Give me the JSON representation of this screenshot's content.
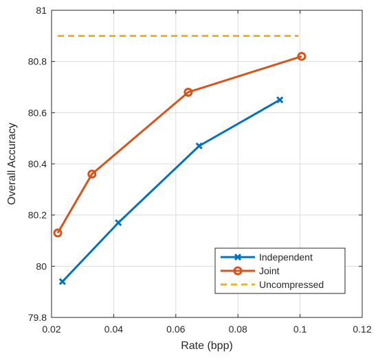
{
  "chart_data": {
    "type": "line",
    "title": "",
    "xlabel": "Rate (bpp)",
    "ylabel": "Overall Accuracy",
    "xlim": [
      0.02,
      0.12
    ],
    "ylim": [
      79.8,
      81
    ],
    "xticks": [
      0.02,
      0.04,
      0.06,
      0.08,
      0.1,
      0.12
    ],
    "xtick_labels": [
      "0.02",
      "0.04",
      "0.06",
      "0.08",
      "0.1",
      "0.12"
    ],
    "yticks": [
      79.8,
      80,
      80.2,
      80.4,
      80.6,
      80.8,
      81
    ],
    "ytick_labels": [
      "79.8",
      "80",
      "80.2",
      "80.4",
      "80.6",
      "80.8",
      "81"
    ],
    "grid": true,
    "legend_position": "bottom-right",
    "series": [
      {
        "name": "Independent",
        "color": "#0072BD",
        "marker": "x",
        "line_style": "solid",
        "x": [
          0.0235,
          0.0415,
          0.0675,
          0.0935
        ],
        "y": [
          79.94,
          80.17,
          80.47,
          80.65
        ]
      },
      {
        "name": "Joint",
        "color": "#D95319",
        "marker": "circle",
        "line_style": "solid",
        "x": [
          0.022,
          0.033,
          0.064,
          0.1005
        ],
        "y": [
          80.13,
          80.36,
          80.68,
          80.82
        ]
      },
      {
        "name": "Uncompressed",
        "color": "#EDB120",
        "marker": "none",
        "line_style": "dashed",
        "x": [
          0.022,
          0.0995
        ],
        "y": [
          80.9,
          80.9
        ]
      }
    ]
  }
}
